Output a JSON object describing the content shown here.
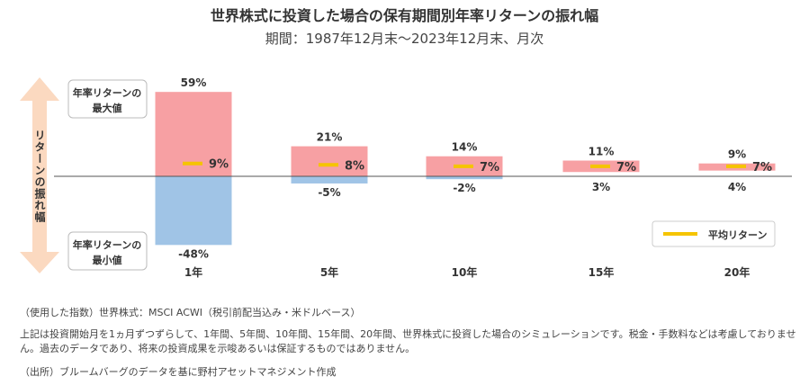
{
  "header": {
    "title": "世界株式に投資した場合の保有期間別年率リターンの振れ幅",
    "subtitle": "期間：1987年12月末〜2023年12月末、月次"
  },
  "labels": {
    "y_axis": "リターンの振れ幅",
    "max_box": [
      "年率リターンの",
      "最大値"
    ],
    "min_box": [
      "年率リターンの",
      "最小値"
    ],
    "legend": "平均リターン"
  },
  "notes": {
    "index": "（使用した指数）世界株式：MSCI ACWI（税引前配当込み・米ドルベース）",
    "disclaimer": "上記は投資開始月を1ヵ月ずつずらして、1年間、5年間、10年間、15年間、20年間、世界株式に投資した場合のシミュレーションです。税金・手数料などは考慮しておりません。過去のデータであり、将来の投資成果を示唆あるいは保証するものではありません。",
    "source": "（出所）ブルームバーグのデータを基に野村アセットマネジメント作成"
  },
  "colors": {
    "max_bar": "#f7a0a3",
    "min_bar": "#a0c4e6",
    "avg_mark": "#f5c400",
    "arrow": "#fbd9c0"
  },
  "chart_data": {
    "type": "bar",
    "categories": [
      "1年",
      "5年",
      "10年",
      "15年",
      "20年"
    ],
    "series": [
      {
        "name": "年率リターンの最大値",
        "values": [
          59,
          21,
          14,
          11,
          9
        ],
        "labels": [
          "59%",
          "21%",
          "14%",
          "11%",
          "9%"
        ]
      },
      {
        "name": "年率リターンの最小値",
        "values": [
          -48,
          -5,
          -2,
          3,
          4
        ],
        "labels": [
          "-48%",
          "-5%",
          "-2%",
          "3%",
          "4%"
        ]
      },
      {
        "name": "平均リターン",
        "values": [
          9,
          8,
          7,
          7,
          7
        ],
        "labels": [
          "9%",
          "8%",
          "7%",
          "7%",
          "7%"
        ]
      }
    ],
    "ylim": [
      -48,
      59
    ]
  }
}
